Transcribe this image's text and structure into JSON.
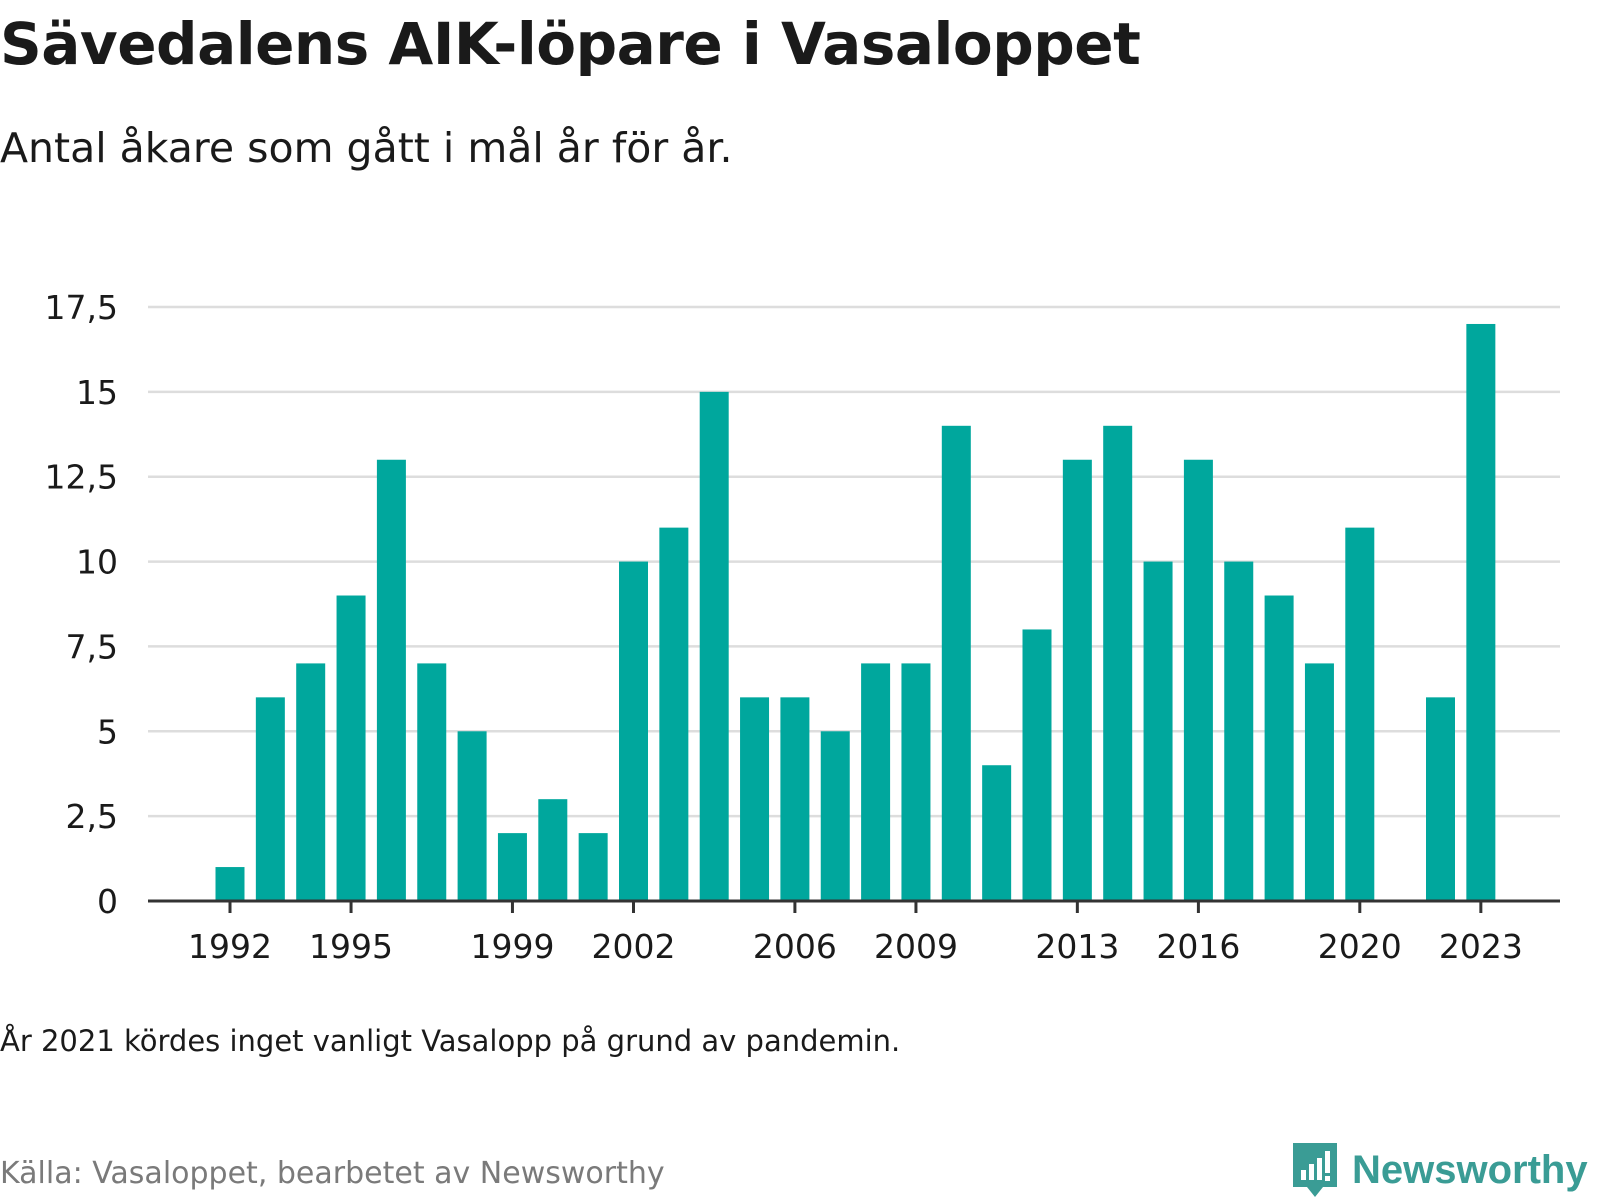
{
  "title": "Sävedalens AIK-löpare i Vasaloppet",
  "subtitle": "Antal åkare som gått i mål år för år.",
  "note": "År 2021 kördes inget vanligt Vasalopp på grund av pandemin.",
  "source": "Källa: Vasaloppet, bearbetet av Newsworthy",
  "brand": {
    "name": "Newsworthy",
    "icon": "bar-chart-speech-bubble-icon",
    "color": "#3a9c95"
  },
  "colors": {
    "bar": "#00a79d",
    "grid": "#dddddd",
    "axis": "#333333",
    "text": "#1a1a1a"
  },
  "chart_data": {
    "type": "bar",
    "title": "",
    "xlabel": "",
    "ylabel": "",
    "categories": [
      1992,
      1993,
      1994,
      1995,
      1996,
      1997,
      1998,
      1999,
      2000,
      2001,
      2002,
      2003,
      2004,
      2005,
      2006,
      2007,
      2008,
      2009,
      2010,
      2011,
      2012,
      2013,
      2014,
      2015,
      2016,
      2017,
      2018,
      2019,
      2020,
      2021,
      2022,
      2023
    ],
    "values": [
      1,
      6,
      7,
      9,
      13,
      7,
      5,
      2,
      3,
      2,
      10,
      11,
      15,
      6,
      6,
      5,
      7,
      7,
      14,
      4,
      8,
      13,
      14,
      10,
      13,
      10,
      9,
      7,
      11,
      null,
      6,
      17
    ],
    "x_ticks": [
      1992,
      1995,
      1999,
      2002,
      2006,
      2009,
      2013,
      2016,
      2020,
      2023
    ],
    "y_ticks": [
      "0",
      "2,5",
      "5",
      "7,5",
      "10",
      "12,5",
      "15",
      "17,5"
    ],
    "ylim": [
      0,
      17.5
    ],
    "grid": true,
    "legend": "none"
  }
}
